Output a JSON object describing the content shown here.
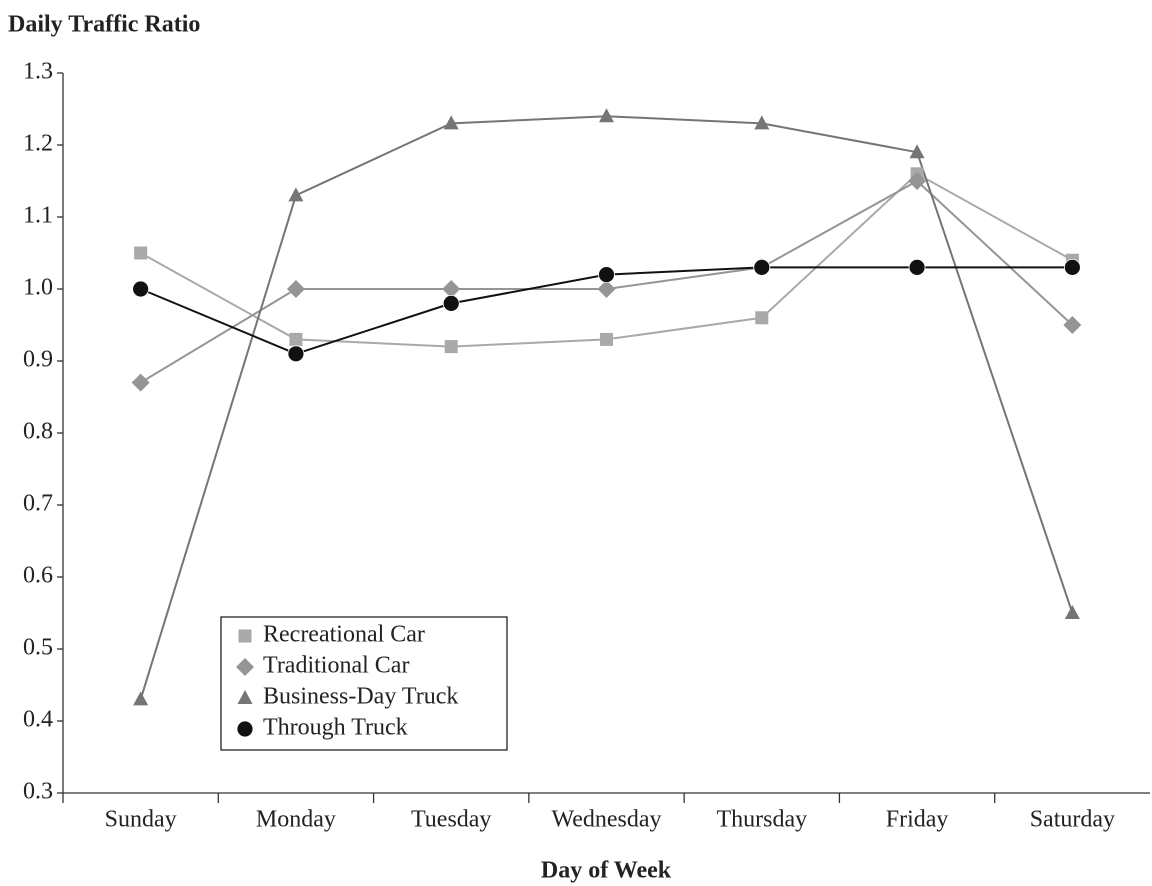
{
  "chart_data": {
    "type": "line",
    "y_label": "Daily Traffic Ratio",
    "x_label": "Day of Week",
    "categories": [
      "Sunday",
      "Monday",
      "Tuesday",
      "Wednesday",
      "Thursday",
      "Friday",
      "Saturday"
    ],
    "series": [
      {
        "name": "Recreational Car",
        "color": "#a9a9a9",
        "marker": "square",
        "values": [
          1.05,
          0.93,
          0.92,
          0.93,
          0.96,
          1.16,
          1.04
        ]
      },
      {
        "name": "Traditional Car",
        "color": "#959595",
        "marker": "diamond",
        "values": [
          0.87,
          1.0,
          1.0,
          1.0,
          1.03,
          1.15,
          0.95
        ]
      },
      {
        "name": "Business-Day Truck",
        "color": "#757575",
        "marker": "triangle",
        "values": [
          0.43,
          1.13,
          1.23,
          1.24,
          1.23,
          1.19,
          0.55
        ]
      },
      {
        "name": "Through Truck",
        "color": "#111111",
        "marker": "circle",
        "values": [
          1.0,
          0.91,
          0.98,
          1.02,
          1.03,
          1.03,
          1.03
        ]
      }
    ],
    "ylim": [
      0.3,
      1.3
    ],
    "yticks": [
      0.3,
      0.4,
      0.5,
      0.6,
      0.7,
      0.8,
      0.9,
      {
        "value": 1,
        "label": "1.0"
      },
      1.1,
      1.2,
      1.3
    ]
  }
}
